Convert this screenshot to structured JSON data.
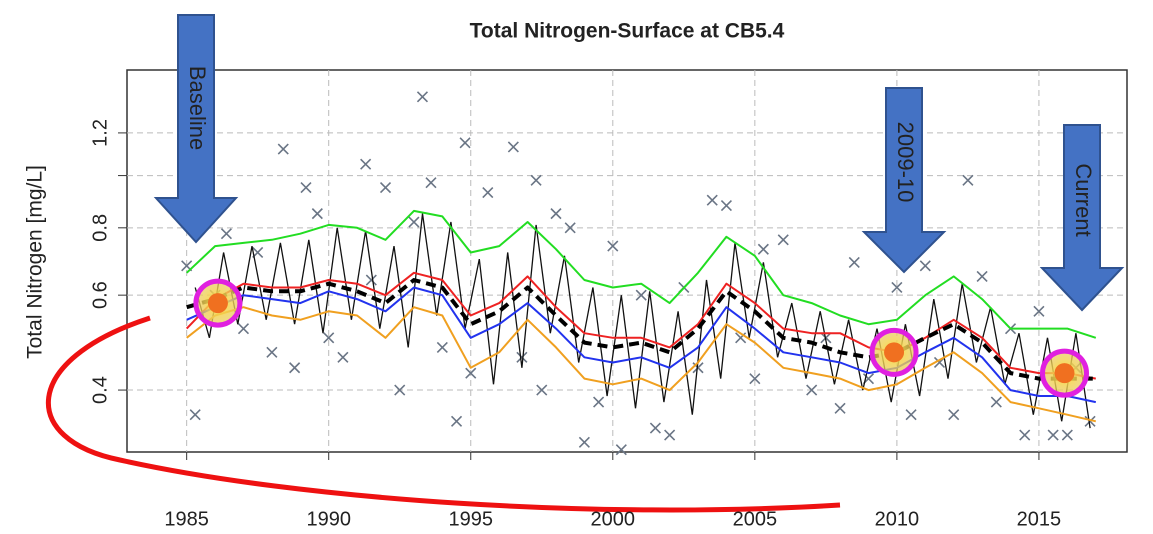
{
  "chart_data": {
    "type": "line",
    "title": "Total Nitrogen-Surface at CB5.4",
    "y_label": "Total Nitrogen [mg/L]",
    "log_y": true,
    "grid": true,
    "xlim": [
      1982.9,
      2018.1
    ],
    "ylim": [
      0.307,
      1.57
    ],
    "xticks": [
      1985,
      1990,
      1995,
      2000,
      2005,
      2010,
      2015
    ],
    "yticks": [
      0.4,
      0.6,
      0.8,
      1.2
    ],
    "minor_yticks": [
      1.0
    ],
    "x": [
      1985,
      1986,
      1987,
      1988,
      1989,
      1990,
      1991,
      1992,
      1993,
      1994,
      1995,
      1996,
      1997,
      1998,
      1999,
      2000,
      2001,
      2002,
      2003,
      2004,
      2005,
      2006,
      2007,
      2008,
      2009,
      2010,
      2011,
      2012,
      2013,
      2014,
      2015,
      2016,
      2017
    ],
    "series": [
      {
        "color": "#22dd22",
        "values": [
          0.66,
          0.74,
          0.75,
          0.76,
          0.78,
          0.81,
          0.8,
          0.76,
          0.86,
          0.84,
          0.72,
          0.74,
          0.82,
          0.73,
          0.64,
          0.62,
          0.63,
          0.58,
          0.66,
          0.77,
          0.71,
          0.6,
          0.58,
          0.55,
          0.53,
          0.54,
          0.6,
          0.65,
          0.59,
          0.52,
          0.52,
          0.52,
          0.5
        ]
      },
      {
        "color": "#ee2222",
        "values": [
          0.52,
          0.59,
          0.63,
          0.62,
          0.62,
          0.64,
          0.63,
          0.6,
          0.66,
          0.64,
          0.55,
          0.58,
          0.65,
          0.57,
          0.51,
          0.5,
          0.5,
          0.48,
          0.53,
          0.63,
          0.58,
          0.52,
          0.51,
          0.51,
          0.48,
          0.47,
          0.5,
          0.54,
          0.5,
          0.44,
          0.43,
          0.43,
          0.42
        ]
      },
      {
        "color": "#2233ee",
        "values": [
          0.54,
          0.57,
          0.6,
          0.59,
          0.58,
          0.61,
          0.59,
          0.56,
          0.62,
          0.6,
          0.5,
          0.53,
          0.58,
          0.52,
          0.46,
          0.45,
          0.46,
          0.44,
          0.48,
          0.57,
          0.52,
          0.47,
          0.46,
          0.45,
          0.43,
          0.44,
          0.47,
          0.5,
          0.46,
          0.4,
          0.39,
          0.39,
          0.38
        ]
      },
      {
        "color": "#f0a020",
        "values": [
          0.5,
          0.55,
          0.57,
          0.55,
          0.54,
          0.56,
          0.55,
          0.5,
          0.57,
          0.55,
          0.44,
          0.47,
          0.54,
          0.48,
          0.42,
          0.41,
          0.42,
          0.4,
          0.45,
          0.53,
          0.49,
          0.44,
          0.43,
          0.42,
          0.4,
          0.41,
          0.44,
          0.47,
          0.43,
          0.38,
          0.37,
          0.36,
          0.35
        ]
      },
      {
        "color": "#000000",
        "dashed": true,
        "values": [
          0.57,
          0.59,
          0.62,
          0.61,
          0.61,
          0.63,
          0.61,
          0.58,
          0.64,
          0.62,
          0.53,
          0.56,
          0.62,
          0.55,
          0.49,
          0.48,
          0.49,
          0.47,
          0.52,
          0.61,
          0.56,
          0.5,
          0.49,
          0.47,
          0.46,
          0.47,
          0.5,
          0.53,
          0.49,
          0.43,
          0.42,
          0.42,
          0.42
        ]
      }
    ],
    "seasonal": {
      "color": "#111111",
      "x": [
        1985.3,
        1985.8,
        1986.3,
        1986.8,
        1987.3,
        1987.8,
        1988.3,
        1988.8,
        1989.3,
        1989.8,
        1990.3,
        1990.8,
        1991.3,
        1991.8,
        1992.3,
        1992.8,
        1993.3,
        1993.8,
        1994.3,
        1994.8,
        1995.3,
        1995.8,
        1996.3,
        1996.8,
        1997.3,
        1997.8,
        1998.3,
        1998.8,
        1999.3,
        1999.8,
        2000.3,
        2000.8,
        2001.3,
        2001.8,
        2002.3,
        2002.8,
        2003.3,
        2003.8,
        2004.3,
        2004.8,
        2005.3,
        2005.8,
        2006.3,
        2006.8,
        2007.3,
        2007.8,
        2008.3,
        2008.8,
        2009.3,
        2009.8,
        2010.3,
        2010.8,
        2011.3,
        2011.8,
        2012.3,
        2012.8,
        2013.3,
        2013.8,
        2014.3,
        2014.8,
        2015.3,
        2015.8,
        2016.3,
        2016.8
      ],
      "values": [
        0.62,
        0.5,
        0.72,
        0.53,
        0.74,
        0.54,
        0.75,
        0.53,
        0.76,
        0.51,
        0.8,
        0.54,
        0.79,
        0.52,
        0.74,
        0.48,
        0.85,
        0.55,
        0.82,
        0.52,
        0.7,
        0.41,
        0.72,
        0.44,
        0.81,
        0.51,
        0.71,
        0.45,
        0.62,
        0.39,
        0.6,
        0.37,
        0.61,
        0.38,
        0.56,
        0.36,
        0.64,
        0.42,
        0.75,
        0.5,
        0.69,
        0.46,
        0.58,
        0.42,
        0.56,
        0.41,
        0.54,
        0.4,
        0.52,
        0.38,
        0.53,
        0.39,
        0.59,
        0.42,
        0.63,
        0.45,
        0.57,
        0.41,
        0.51,
        0.36,
        0.5,
        0.35,
        0.51,
        0.34
      ]
    },
    "observations": {
      "color": "#6a7585",
      "x": [
        1985.0,
        1985.3,
        1986.0,
        1986.4,
        1987.0,
        1987.5,
        1988.0,
        1988.4,
        1988.8,
        1989.2,
        1989.6,
        1990.0,
        1990.5,
        1991.3,
        1991.5,
        1992.0,
        1992.5,
        1993.0,
        1993.3,
        1993.6,
        1994.0,
        1994.5,
        1994.8,
        1995.0,
        1995.6,
        1996.5,
        1996.8,
        1997.3,
        1997.5,
        1998.0,
        1998.5,
        1999.0,
        1999.5,
        2000.0,
        2000.3,
        2001.0,
        2001.5,
        2002.0,
        2002.5,
        2003.0,
        2003.5,
        2004.0,
        2004.5,
        2005.0,
        2005.3,
        2006.0,
        2007.0,
        2007.5,
        2008.0,
        2008.5,
        2009.0,
        2010.0,
        2010.5,
        2011.0,
        2011.5,
        2012.0,
        2012.5,
        2013.0,
        2013.5,
        2014.0,
        2014.5,
        2015.0,
        2015.5,
        2016.0,
        2016.3,
        2016.8
      ],
      "values": [
        0.68,
        0.36,
        0.6,
        0.78,
        0.52,
        0.72,
        0.47,
        1.12,
        0.44,
        0.95,
        0.85,
        0.5,
        0.46,
        1.05,
        0.64,
        0.95,
        0.4,
        0.82,
        1.4,
        0.97,
        0.48,
        0.35,
        1.15,
        0.43,
        0.93,
        1.13,
        0.46,
        0.98,
        0.4,
        0.85,
        0.8,
        0.32,
        0.38,
        0.74,
        0.31,
        0.6,
        0.34,
        0.33,
        0.62,
        0.44,
        0.9,
        0.88,
        0.5,
        0.42,
        0.73,
        0.76,
        0.4,
        0.5,
        0.37,
        0.69,
        0.42,
        0.62,
        0.36,
        0.68,
        0.45,
        0.36,
        0.98,
        0.65,
        0.38,
        0.52,
        0.33,
        0.56,
        0.33,
        0.33,
        0.44,
        0.35
      ]
    },
    "highlights": {
      "x": [
        1986.1,
        2009.9,
        2015.9
      ],
      "values": [
        0.58,
        0.47,
        0.43
      ]
    },
    "annotations": [
      "Baseline",
      "2009-10",
      "Current"
    ]
  }
}
